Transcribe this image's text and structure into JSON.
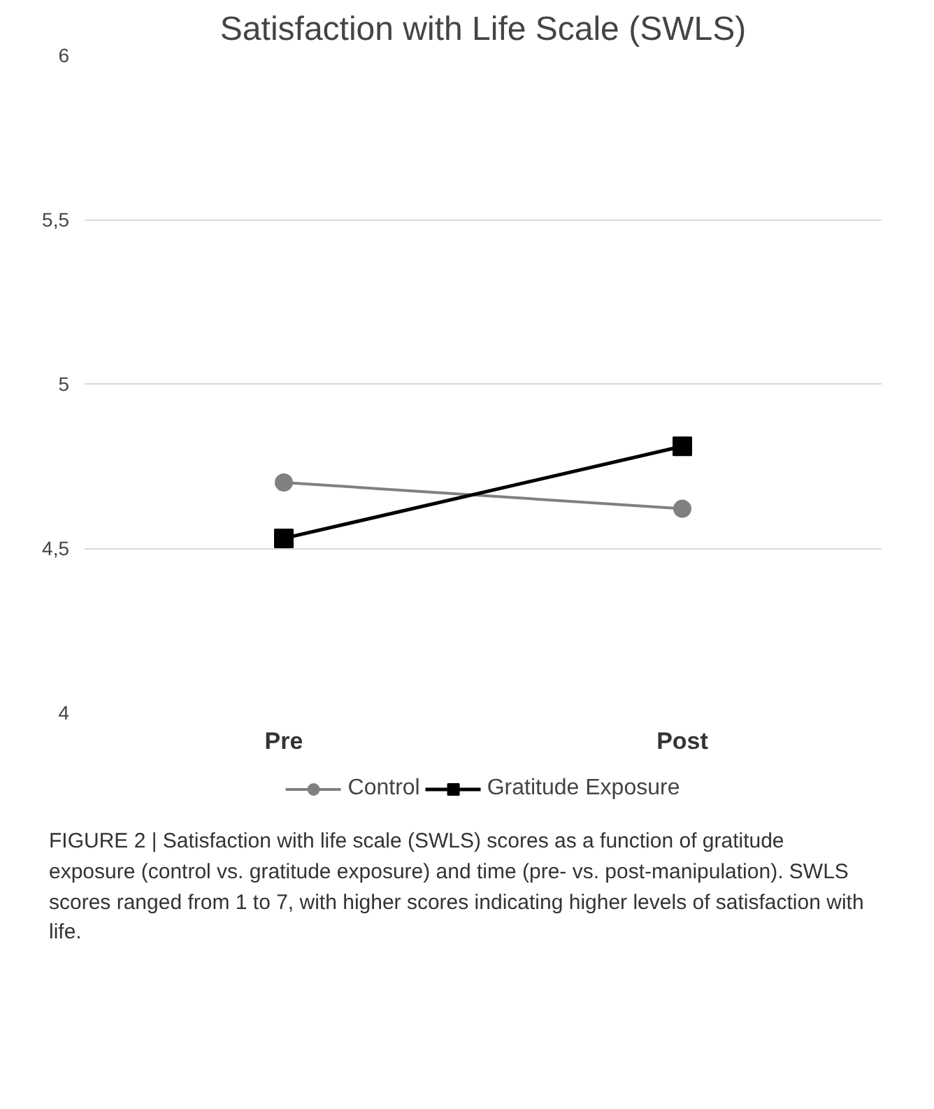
{
  "chart_data": {
    "type": "line",
    "title": "Satisfaction with Life Scale (SWLS)",
    "categories": [
      "Pre",
      "Post"
    ],
    "series": [
      {
        "name": "Control",
        "color": "#808080",
        "values": [
          4.7,
          4.62
        ],
        "marker": "circle"
      },
      {
        "name": "Gratitude Exposure",
        "color": "#000000",
        "values": [
          4.53,
          4.81
        ],
        "marker": "square"
      }
    ],
    "ylim": [
      4,
      6
    ],
    "yticks": [
      4,
      {
        "value": 4.5,
        "label": "4,5"
      },
      5,
      {
        "value": 5.5,
        "label": "5,5"
      },
      6
    ],
    "grid": "y",
    "legend": "bottom",
    "line_style": "solid",
    "annotations": [
      "FIGURE 2 | Satisfaction with life scale (SWLS) scores as a function of gratitude exposure (control vs. gratitude exposure) and time (pre- vs. post-manipulation). SWLS scores ranged from 1 to 7, with higher scores indicating higher levels of satisfaction with life."
    ]
  }
}
